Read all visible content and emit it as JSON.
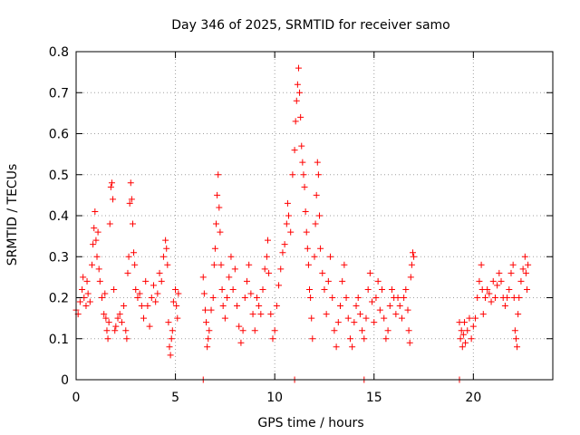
{
  "chart_data": {
    "type": "scatter",
    "title": "Day 346 of 2025, SRMTID for receiver samo",
    "xlabel": "GPS time / hours",
    "ylabel": "SRMTID / TECUs",
    "xlim": [
      0,
      24
    ],
    "ylim": [
      0,
      0.8
    ],
    "xticks": [
      0,
      5,
      10,
      15,
      20
    ],
    "yticks": [
      0,
      0.1,
      0.2,
      0.3,
      0.4,
      0.5,
      0.6,
      0.7,
      0.8
    ],
    "xtick_labels": [
      "0",
      "5",
      "10",
      "15",
      "20"
    ],
    "ytick_labels": [
      "0",
      "0.1",
      "0.2",
      "0.3",
      "0.4",
      "0.5",
      "0.6",
      "0.7",
      "0.8"
    ],
    "grid": true,
    "marker": "+",
    "color": "#ff0000",
    "series": [
      {
        "name": "SRMTID",
        "points": [
          [
            0.0,
            0.17
          ],
          [
            0.1,
            0.16
          ],
          [
            0.2,
            0.19
          ],
          [
            0.3,
            0.22
          ],
          [
            0.35,
            0.25
          ],
          [
            0.4,
            0.2
          ],
          [
            0.5,
            0.18
          ],
          [
            0.55,
            0.24
          ],
          [
            0.6,
            0.21
          ],
          [
            0.7,
            0.19
          ],
          [
            0.8,
            0.28
          ],
          [
            0.85,
            0.33
          ],
          [
            0.9,
            0.37
          ],
          [
            0.95,
            0.41
          ],
          [
            1.0,
            0.34
          ],
          [
            1.05,
            0.3
          ],
          [
            1.1,
            0.36
          ],
          [
            1.15,
            0.27
          ],
          [
            1.2,
            0.24
          ],
          [
            1.3,
            0.2
          ],
          [
            1.4,
            0.16
          ],
          [
            1.45,
            0.21
          ],
          [
            1.5,
            0.15
          ],
          [
            1.55,
            0.12
          ],
          [
            1.6,
            0.1
          ],
          [
            1.65,
            0.14
          ],
          [
            1.7,
            0.38
          ],
          [
            1.75,
            0.47
          ],
          [
            1.8,
            0.48
          ],
          [
            1.85,
            0.44
          ],
          [
            1.9,
            0.22
          ],
          [
            1.95,
            0.12
          ],
          [
            2.0,
            0.13
          ],
          [
            2.1,
            0.15
          ],
          [
            2.2,
            0.16
          ],
          [
            2.3,
            0.14
          ],
          [
            2.4,
            0.18
          ],
          [
            2.5,
            0.12
          ],
          [
            2.55,
            0.1
          ],
          [
            2.6,
            0.26
          ],
          [
            2.65,
            0.3
          ],
          [
            2.7,
            0.43
          ],
          [
            2.75,
            0.48
          ],
          [
            2.8,
            0.44
          ],
          [
            2.85,
            0.38
          ],
          [
            2.9,
            0.31
          ],
          [
            2.95,
            0.28
          ],
          [
            3.0,
            0.22
          ],
          [
            3.1,
            0.2
          ],
          [
            3.2,
            0.21
          ],
          [
            3.3,
            0.18
          ],
          [
            3.4,
            0.15
          ],
          [
            3.5,
            0.24
          ],
          [
            3.6,
            0.18
          ],
          [
            3.7,
            0.13
          ],
          [
            3.8,
            0.2
          ],
          [
            3.9,
            0.23
          ],
          [
            4.0,
            0.19
          ],
          [
            4.1,
            0.21
          ],
          [
            4.2,
            0.26
          ],
          [
            4.3,
            0.24
          ],
          [
            4.4,
            0.3
          ],
          [
            4.5,
            0.34
          ],
          [
            4.55,
            0.32
          ],
          [
            4.6,
            0.28
          ],
          [
            4.65,
            0.14
          ],
          [
            4.7,
            0.08
          ],
          [
            4.75,
            0.06
          ],
          [
            4.8,
            0.1
          ],
          [
            4.85,
            0.12
          ],
          [
            4.9,
            0.19
          ],
          [
            5.0,
            0.22
          ],
          [
            5.05,
            0.18
          ],
          [
            5.1,
            0.15
          ],
          [
            5.15,
            0.21
          ],
          [
            6.4,
            0.25
          ],
          [
            6.45,
            0.21
          ],
          [
            6.5,
            0.17
          ],
          [
            6.55,
            0.14
          ],
          [
            6.6,
            0.08
          ],
          [
            6.65,
            0.1
          ],
          [
            6.7,
            0.12
          ],
          [
            6.8,
            0.17
          ],
          [
            6.9,
            0.2
          ],
          [
            6.95,
            0.28
          ],
          [
            7.0,
            0.32
          ],
          [
            7.05,
            0.38
          ],
          [
            7.1,
            0.45
          ],
          [
            7.15,
            0.5
          ],
          [
            7.2,
            0.42
          ],
          [
            7.25,
            0.36
          ],
          [
            7.3,
            0.28
          ],
          [
            7.35,
            0.22
          ],
          [
            7.4,
            0.18
          ],
          [
            7.5,
            0.15
          ],
          [
            7.6,
            0.2
          ],
          [
            7.7,
            0.25
          ],
          [
            7.8,
            0.3
          ],
          [
            7.9,
            0.22
          ],
          [
            8.0,
            0.27
          ],
          [
            8.1,
            0.18
          ],
          [
            8.2,
            0.13
          ],
          [
            8.3,
            0.09
          ],
          [
            8.4,
            0.12
          ],
          [
            8.5,
            0.2
          ],
          [
            8.6,
            0.24
          ],
          [
            8.7,
            0.28
          ],
          [
            8.8,
            0.21
          ],
          [
            8.9,
            0.16
          ],
          [
            9.0,
            0.12
          ],
          [
            9.1,
            0.2
          ],
          [
            9.2,
            0.18
          ],
          [
            9.3,
            0.16
          ],
          [
            9.4,
            0.22
          ],
          [
            9.5,
            0.27
          ],
          [
            9.6,
            0.3
          ],
          [
            9.65,
            0.34
          ],
          [
            9.7,
            0.26
          ],
          [
            9.8,
            0.16
          ],
          [
            9.9,
            0.1
          ],
          [
            10.0,
            0.12
          ],
          [
            10.1,
            0.18
          ],
          [
            10.2,
            0.23
          ],
          [
            10.3,
            0.27
          ],
          [
            10.4,
            0.31
          ],
          [
            10.5,
            0.33
          ],
          [
            10.6,
            0.38
          ],
          [
            10.65,
            0.43
          ],
          [
            10.7,
            0.4
          ],
          [
            10.8,
            0.36
          ],
          [
            10.9,
            0.5
          ],
          [
            11.0,
            0.56
          ],
          [
            11.05,
            0.63
          ],
          [
            11.1,
            0.68
          ],
          [
            11.15,
            0.72
          ],
          [
            11.2,
            0.76
          ],
          [
            11.25,
            0.7
          ],
          [
            11.3,
            0.64
          ],
          [
            11.35,
            0.57
          ],
          [
            11.4,
            0.53
          ],
          [
            11.45,
            0.5
          ],
          [
            11.5,
            0.47
          ],
          [
            11.55,
            0.41
          ],
          [
            11.6,
            0.36
          ],
          [
            11.65,
            0.32
          ],
          [
            11.7,
            0.28
          ],
          [
            11.75,
            0.22
          ],
          [
            11.8,
            0.2
          ],
          [
            11.85,
            0.15
          ],
          [
            11.9,
            0.1
          ],
          [
            12.0,
            0.3
          ],
          [
            12.05,
            0.38
          ],
          [
            12.1,
            0.45
          ],
          [
            12.15,
            0.53
          ],
          [
            12.2,
            0.5
          ],
          [
            12.25,
            0.4
          ],
          [
            12.3,
            0.32
          ],
          [
            12.4,
            0.26
          ],
          [
            12.5,
            0.22
          ],
          [
            12.6,
            0.16
          ],
          [
            12.7,
            0.24
          ],
          [
            12.8,
            0.3
          ],
          [
            12.9,
            0.2
          ],
          [
            13.0,
            0.12
          ],
          [
            13.1,
            0.08
          ],
          [
            13.2,
            0.14
          ],
          [
            13.3,
            0.18
          ],
          [
            13.4,
            0.24
          ],
          [
            13.5,
            0.28
          ],
          [
            13.6,
            0.2
          ],
          [
            13.7,
            0.15
          ],
          [
            13.8,
            0.1
          ],
          [
            13.9,
            0.08
          ],
          [
            14.0,
            0.14
          ],
          [
            14.1,
            0.18
          ],
          [
            14.2,
            0.2
          ],
          [
            14.3,
            0.16
          ],
          [
            14.4,
            0.12
          ],
          [
            14.5,
            0.1
          ],
          [
            14.6,
            0.15
          ],
          [
            14.7,
            0.22
          ],
          [
            14.8,
            0.26
          ],
          [
            14.9,
            0.19
          ],
          [
            15.0,
            0.14
          ],
          [
            15.1,
            0.2
          ],
          [
            15.2,
            0.24
          ],
          [
            15.3,
            0.17
          ],
          [
            15.4,
            0.22
          ],
          [
            15.5,
            0.15
          ],
          [
            15.6,
            0.1
          ],
          [
            15.7,
            0.12
          ],
          [
            15.8,
            0.18
          ],
          [
            15.9,
            0.22
          ],
          [
            16.0,
            0.2
          ],
          [
            16.1,
            0.16
          ],
          [
            16.2,
            0.2
          ],
          [
            16.3,
            0.18
          ],
          [
            16.4,
            0.15
          ],
          [
            16.5,
            0.2
          ],
          [
            16.6,
            0.22
          ],
          [
            16.7,
            0.17
          ],
          [
            16.75,
            0.12
          ],
          [
            16.8,
            0.09
          ],
          [
            16.85,
            0.25
          ],
          [
            16.9,
            0.28
          ],
          [
            16.95,
            0.31
          ],
          [
            17.0,
            0.3
          ],
          [
            19.3,
            0.14
          ],
          [
            19.35,
            0.1
          ],
          [
            19.4,
            0.12
          ],
          [
            19.45,
            0.08
          ],
          [
            19.5,
            0.11
          ],
          [
            19.55,
            0.14
          ],
          [
            19.6,
            0.09
          ],
          [
            19.7,
            0.12
          ],
          [
            19.8,
            0.15
          ],
          [
            19.9,
            0.1
          ],
          [
            20.0,
            0.13
          ],
          [
            20.1,
            0.15
          ],
          [
            20.2,
            0.2
          ],
          [
            20.3,
            0.24
          ],
          [
            20.4,
            0.28
          ],
          [
            20.45,
            0.22
          ],
          [
            20.5,
            0.16
          ],
          [
            20.6,
            0.2
          ],
          [
            20.7,
            0.22
          ],
          [
            20.8,
            0.21
          ],
          [
            20.9,
            0.19
          ],
          [
            21.0,
            0.24
          ],
          [
            21.1,
            0.2
          ],
          [
            21.2,
            0.23
          ],
          [
            21.3,
            0.26
          ],
          [
            21.4,
            0.24
          ],
          [
            21.5,
            0.2
          ],
          [
            21.6,
            0.18
          ],
          [
            21.7,
            0.2
          ],
          [
            21.8,
            0.22
          ],
          [
            21.9,
            0.26
          ],
          [
            22.0,
            0.28
          ],
          [
            22.05,
            0.2
          ],
          [
            22.1,
            0.12
          ],
          [
            22.15,
            0.1
          ],
          [
            22.2,
            0.08
          ],
          [
            22.25,
            0.16
          ],
          [
            22.3,
            0.2
          ],
          [
            22.4,
            0.24
          ],
          [
            22.5,
            0.27
          ],
          [
            22.6,
            0.3
          ],
          [
            22.65,
            0.26
          ],
          [
            22.7,
            0.22
          ],
          [
            22.75,
            0.28
          ],
          [
            6.4,
            0.0
          ],
          [
            14.5,
            0.0
          ],
          [
            19.3,
            0.0
          ],
          [
            11.0,
            0.0
          ]
        ]
      }
    ]
  }
}
